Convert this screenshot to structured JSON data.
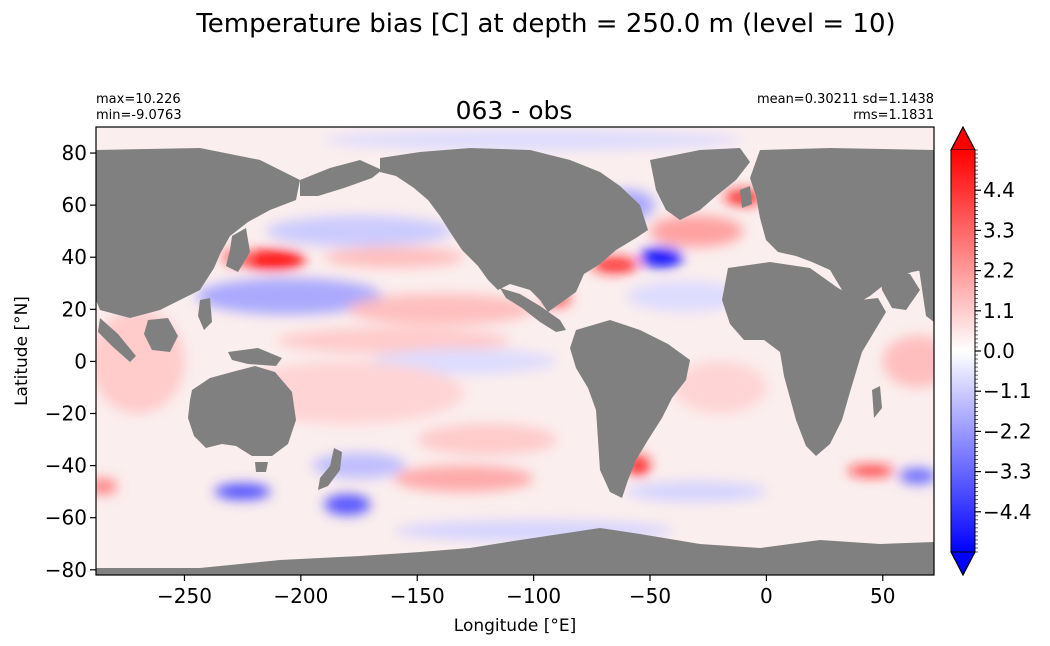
{
  "figure": {
    "suptitle": "Temperature bias [C] at depth = 250.0 m (level = 10)"
  },
  "chart_data": {
    "type": "heatmap",
    "title": "063 - obs",
    "xlabel": "Longitude [°E]",
    "ylabel": "Latitude [°N]",
    "xlim": [
      -288,
      72
    ],
    "ylim": [
      -82,
      90
    ],
    "x_ticks": [
      -250,
      -200,
      -150,
      -100,
      -50,
      0,
      50
    ],
    "x_tick_labels": [
      "−250",
      "−200",
      "−150",
      "−100",
      "−50",
      "0",
      "50"
    ],
    "y_ticks": [
      80,
      60,
      40,
      20,
      0,
      -20,
      -40,
      -60,
      -80
    ],
    "y_tick_labels": [
      "80",
      "60",
      "40",
      "20",
      "0",
      "−20",
      "−40",
      "−60",
      "−80"
    ],
    "stats_left": [
      "max=10.226",
      "min=-9.0763"
    ],
    "stats_right": [
      "mean=0.30211 sd=1.1438",
      "rms=1.1831"
    ],
    "land_color": "#808080",
    "colorbar": {
      "cmap": "bwr",
      "vmin": -5.5,
      "vmax": 5.5,
      "extend": "both",
      "ticks": [
        4.4,
        3.3,
        2.2,
        1.1,
        0.0,
        -1.1,
        -2.2,
        -3.3,
        -4.4
      ],
      "tick_labels": [
        "4.4",
        "3.3",
        "2.2",
        "1.1",
        "0.0",
        "−1.1",
        "−2.2",
        "−3.3",
        "−4.4"
      ],
      "colors": {
        "low": "#0000ff",
        "mid": "#ffffff",
        "high": "#ff0000"
      }
    },
    "bias_patches": [
      {
        "lon": -212,
        "lat": 39,
        "rx": 14,
        "ry": 4,
        "value": 6.0
      },
      {
        "lon": -228,
        "lat": 40,
        "rx": 6,
        "ry": 3,
        "value": 3.5
      },
      {
        "lon": -175,
        "lat": 50,
        "rx": 40,
        "ry": 6,
        "value": -1.2
      },
      {
        "lon": -160,
        "lat": 40,
        "rx": 30,
        "ry": 4,
        "value": 1.5
      },
      {
        "lon": -205,
        "lat": 25,
        "rx": 40,
        "ry": 7,
        "value": -2.0
      },
      {
        "lon": -140,
        "lat": 20,
        "rx": 40,
        "ry": 6,
        "value": 1.5
      },
      {
        "lon": -160,
        "lat": 8,
        "rx": 50,
        "ry": 5,
        "value": 1.2
      },
      {
        "lon": -130,
        "lat": 0,
        "rx": 40,
        "ry": 5,
        "value": -0.8
      },
      {
        "lon": -180,
        "lat": -12,
        "rx": 50,
        "ry": 12,
        "value": 1.0
      },
      {
        "lon": -120,
        "lat": -30,
        "rx": 30,
        "ry": 6,
        "value": 1.2
      },
      {
        "lon": -130,
        "lat": -45,
        "rx": 30,
        "ry": 5,
        "value": 2.0
      },
      {
        "lon": -175,
        "lat": -40,
        "rx": 20,
        "ry": 5,
        "value": -1.5
      },
      {
        "lon": -225,
        "lat": -50,
        "rx": 12,
        "ry": 3,
        "value": -4.2
      },
      {
        "lon": -180,
        "lat": -55,
        "rx": 10,
        "ry": 4,
        "value": -4.0
      },
      {
        "lon": -45,
        "lat": 40,
        "rx": 9,
        "ry": 4,
        "value": -7.0
      },
      {
        "lon": -65,
        "lat": 37,
        "rx": 10,
        "ry": 3,
        "value": 5.0
      },
      {
        "lon": -30,
        "lat": 50,
        "rx": 20,
        "ry": 6,
        "value": 2.2
      },
      {
        "lon": -60,
        "lat": 60,
        "rx": 12,
        "ry": 6,
        "value": -2.0
      },
      {
        "lon": -10,
        "lat": 63,
        "rx": 8,
        "ry": 3,
        "value": 5.0
      },
      {
        "lon": -35,
        "lat": 25,
        "rx": 25,
        "ry": 6,
        "value": -0.8
      },
      {
        "lon": -90,
        "lat": 24,
        "rx": 6,
        "ry": 3,
        "value": 4.0
      },
      {
        "lon": -20,
        "lat": -10,
        "rx": 20,
        "ry": 10,
        "value": 1.0
      },
      {
        "lon": -55,
        "lat": -40,
        "rx": 5,
        "ry": 4,
        "value": 5.0
      },
      {
        "lon": -30,
        "lat": -50,
        "rx": 30,
        "ry": 4,
        "value": -1.0
      },
      {
        "lon": 45,
        "lat": -42,
        "rx": 10,
        "ry": 2,
        "value": 5.0
      },
      {
        "lon": 65,
        "lat": -44,
        "rx": 8,
        "ry": 3,
        "value": -3.5
      },
      {
        "lon": 65,
        "lat": 0,
        "rx": 15,
        "ry": 10,
        "value": 1.5
      },
      {
        "lon": -270,
        "lat": 0,
        "rx": 20,
        "ry": 20,
        "value": 1.2
      },
      {
        "lon": -285,
        "lat": -48,
        "rx": 6,
        "ry": 3,
        "value": 3.0
      },
      {
        "lon": -100,
        "lat": -65,
        "rx": 60,
        "ry": 4,
        "value": -1.0
      },
      {
        "lon": -100,
        "lat": 85,
        "rx": 90,
        "ry": 4,
        "value": -0.8
      }
    ]
  }
}
